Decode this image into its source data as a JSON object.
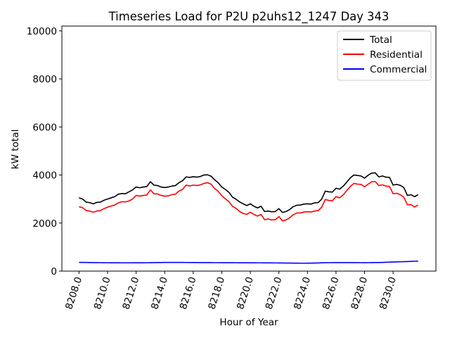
{
  "chart_data": {
    "type": "line",
    "title": "Timeseries Load for P2U p2uhs12_1247  Day 343",
    "xlabel": "Hour of Year",
    "ylabel": "kW total",
    "xlim": [
      8206.8,
      8233.0
    ],
    "ylim": [
      0,
      10200
    ],
    "x_ticks": [
      8208,
      8210,
      8212,
      8214,
      8216,
      8218,
      8220,
      8222,
      8224,
      8226,
      8228,
      8230
    ],
    "x_tick_labels": [
      "8208.0",
      "8210.0",
      "8212.0",
      "8214.0",
      "8216.0",
      "8218.0",
      "8220.0",
      "8222.0",
      "8224.0",
      "8226.0",
      "8228.0",
      "8230.0"
    ],
    "y_ticks": [
      0,
      2000,
      4000,
      6000,
      8000,
      10000
    ],
    "y_tick_labels": [
      "0",
      "2000",
      "4000",
      "6000",
      "8000",
      "10000"
    ],
    "legend_position": "top-right",
    "x": [
      8208.0,
      8208.25,
      8208.5,
      8208.75,
      8209.0,
      8209.25,
      8209.5,
      8209.75,
      8210.0,
      8210.25,
      8210.5,
      8210.75,
      8211.0,
      8211.25,
      8211.5,
      8211.75,
      8212.0,
      8212.25,
      8212.5,
      8212.75,
      8213.0,
      8213.25,
      8213.5,
      8213.75,
      8214.0,
      8214.25,
      8214.5,
      8214.75,
      8215.0,
      8215.25,
      8215.5,
      8215.75,
      8216.0,
      8216.25,
      8216.5,
      8216.75,
      8217.0,
      8217.25,
      8217.5,
      8217.75,
      8218.0,
      8218.25,
      8218.5,
      8218.75,
      8219.0,
      8219.25,
      8219.5,
      8219.75,
      8220.0,
      8220.25,
      8220.5,
      8220.75,
      8221.0,
      8221.25,
      8221.5,
      8221.75,
      8222.0,
      8222.25,
      8222.5,
      8222.75,
      8223.0,
      8223.25,
      8223.5,
      8223.75,
      8224.0,
      8224.25,
      8224.5,
      8224.75,
      8225.0,
      8225.25,
      8225.5,
      8225.75,
      8226.0,
      8226.25,
      8226.5,
      8226.75,
      8227.0,
      8227.25,
      8227.5,
      8227.75,
      8228.0,
      8228.25,
      8228.5,
      8228.75,
      8229.0,
      8229.25,
      8229.5,
      8229.75,
      8230.0,
      8230.25,
      8230.5,
      8230.75,
      8231.0,
      8231.25,
      8231.5,
      8231.75
    ],
    "series": [
      {
        "name": "Total",
        "color": "#000000",
        "values": [
          3050,
          3000,
          2870,
          2850,
          2800,
          2860,
          2870,
          2950,
          3000,
          3050,
          3100,
          3200,
          3230,
          3220,
          3300,
          3380,
          3500,
          3470,
          3500,
          3520,
          3720,
          3580,
          3560,
          3500,
          3480,
          3500,
          3540,
          3560,
          3680,
          3760,
          3920,
          3900,
          3930,
          3910,
          3940,
          4000,
          4010,
          3950,
          3800,
          3680,
          3500,
          3400,
          3280,
          3080,
          2990,
          2880,
          2800,
          2730,
          2800,
          2700,
          2630,
          2700,
          2480,
          2500,
          2470,
          2480,
          2600,
          2440,
          2480,
          2560,
          2680,
          2740,
          2750,
          2790,
          2800,
          2790,
          2840,
          2850,
          3000,
          3330,
          3300,
          3290,
          3450,
          3410,
          3530,
          3700,
          3880,
          4000,
          3980,
          3960,
          3870,
          3990,
          4080,
          4090,
          3920,
          3960,
          3910,
          3900,
          3580,
          3610,
          3570,
          3480,
          3150,
          3180,
          3100,
          3180
        ]
      },
      {
        "name": "Residential",
        "color": "#ff0000",
        "values": [
          2680,
          2640,
          2520,
          2500,
          2450,
          2500,
          2520,
          2600,
          2660,
          2710,
          2750,
          2840,
          2890,
          2880,
          2920,
          3000,
          3150,
          3120,
          3150,
          3170,
          3380,
          3220,
          3210,
          3150,
          3120,
          3130,
          3180,
          3200,
          3330,
          3400,
          3580,
          3540,
          3580,
          3560,
          3590,
          3650,
          3680,
          3620,
          3440,
          3320,
          3140,
          3010,
          2890,
          2700,
          2610,
          2480,
          2400,
          2360,
          2450,
          2360,
          2290,
          2360,
          2140,
          2170,
          2130,
          2140,
          2270,
          2090,
          2130,
          2220,
          2340,
          2420,
          2420,
          2460,
          2470,
          2460,
          2500,
          2520,
          2660,
          2980,
          2940,
          2930,
          3100,
          3050,
          3170,
          3350,
          3520,
          3650,
          3620,
          3610,
          3510,
          3620,
          3720,
          3730,
          3560,
          3590,
          3540,
          3520,
          3220,
          3240,
          3180,
          3080,
          2760,
          2770,
          2670,
          2750
        ]
      },
      {
        "name": "Commercial",
        "color": "#0000ff",
        "values": [
          365,
          362,
          360,
          357,
          355,
          354,
          352,
          350,
          348,
          347,
          346,
          345,
          344,
          344,
          344,
          345,
          346,
          346,
          347,
          348,
          350,
          353,
          356,
          358,
          360,
          361,
          362,
          362,
          361,
          360,
          359,
          358,
          357,
          356,
          355,
          354,
          354,
          353,
          352,
          352,
          351,
          350,
          350,
          349,
          348,
          347,
          346,
          346,
          345,
          345,
          344,
          344,
          343,
          343,
          342,
          341,
          340,
          338,
          336,
          334,
          332,
          331,
          330,
          330,
          331,
          333,
          336,
          340,
          345,
          350,
          352,
          353,
          354,
          354,
          354,
          354,
          354,
          354,
          353,
          352,
          351,
          352,
          354,
          356,
          358,
          362,
          367,
          372,
          378,
          383,
          388,
          393,
          398,
          404,
          410,
          415
        ]
      }
    ]
  }
}
